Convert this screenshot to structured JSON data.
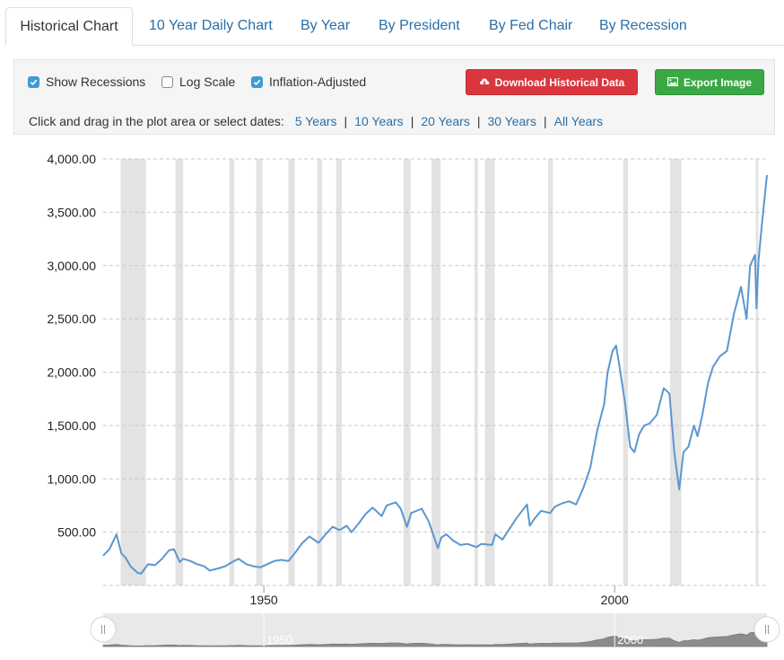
{
  "tabs": [
    {
      "label": "Historical Chart"
    },
    {
      "label": "10 Year Daily Chart"
    },
    {
      "label": "By Year"
    },
    {
      "label": "By President"
    },
    {
      "label": "By Fed Chair"
    },
    {
      "label": "By Recession"
    }
  ],
  "controls": {
    "show_recessions": {
      "label": "Show Recessions",
      "checked": true
    },
    "log_scale": {
      "label": "Log Scale",
      "checked": false
    },
    "inflation_adjusted": {
      "label": "Inflation-Adjusted",
      "checked": true
    },
    "download_label": "Download Historical Data",
    "export_label": "Export Image",
    "download_color": "#d9363e",
    "export_color": "#3aa845",
    "date_prompt": "Click and drag in the plot area or select dates:",
    "date_ranges": [
      "5 Years",
      "10 Years",
      "20 Years",
      "30 Years",
      "All Years"
    ],
    "separator": "|"
  },
  "navigator": {
    "labels": [
      "1950",
      "2000"
    ]
  },
  "chart_data": {
    "type": "line",
    "line_color": "#5b97cf",
    "recession_color": "#e3e3e3",
    "xlim": [
      1927.1,
      2021.7
    ],
    "ylim": [
      0,
      4000
    ],
    "yticks": [
      500,
      1000,
      1500,
      2000,
      2500,
      3000,
      3500,
      4000
    ],
    "ytick_labels": [
      "500.00",
      "1,000.00",
      "1,500.00",
      "2,000.00",
      "2,500.00",
      "3,000.00",
      "3,500.00",
      "4,000.00"
    ],
    "xticks": [
      1950,
      2000
    ],
    "xtick_labels": [
      "1950",
      "2000"
    ],
    "grid": true,
    "recessions": [
      [
        1929.6,
        1933.2
      ],
      [
        1937.4,
        1938.5
      ],
      [
        1945.1,
        1945.8
      ],
      [
        1948.9,
        1949.8
      ],
      [
        1953.5,
        1954.4
      ],
      [
        1957.6,
        1958.3
      ],
      [
        1960.3,
        1961.1
      ],
      [
        1969.9,
        1970.9
      ],
      [
        1973.9,
        1975.2
      ],
      [
        1980.0,
        1980.5
      ],
      [
        1981.5,
        1982.9
      ],
      [
        1990.5,
        1991.2
      ],
      [
        2001.2,
        2001.9
      ],
      [
        2007.9,
        2009.5
      ],
      [
        2020.1,
        2020.4
      ]
    ],
    "series": [
      {
        "x": [
          1927.1,
          1928,
          1929.0,
          1929.7,
          1930.3,
          1931.0,
          1932.0,
          1932.5,
          1933.5,
          1934.5,
          1935.5,
          1936.5,
          1937.2,
          1938.0,
          1938.5,
          1939.5,
          1940.5,
          1941.5,
          1942.3,
          1943.5,
          1944.5,
          1945.5,
          1946.4,
          1947.5,
          1948.5,
          1949.5,
          1950.5,
          1951.5,
          1952.5,
          1953.5,
          1954.5,
          1955.5,
          1956.5,
          1957.8,
          1958.8,
          1959.8,
          1960.8,
          1961.8,
          1962.5,
          1963.5,
          1964.5,
          1965.5,
          1966.0,
          1966.8,
          1967.5,
          1968.8,
          1969.5,
          1970.4,
          1971.0,
          1972.5,
          1973.5,
          1974.8,
          1975.3,
          1976.0,
          1977.0,
          1978.0,
          1979.0,
          1980.3,
          1981.0,
          1982.5,
          1983.0,
          1984.0,
          1985.0,
          1986.0,
          1987.5,
          1987.9,
          1988.5,
          1989.5,
          1990.8,
          1991.5,
          1992.5,
          1993.5,
          1994.5,
          1995.5,
          1996.5,
          1997.5,
          1998.5,
          1999.0,
          1999.7,
          2000.2,
          2000.7,
          2001.5,
          2002.2,
          2002.8,
          2003.5,
          2004.2,
          2005.0,
          2006.0,
          2007.0,
          2007.8,
          2008.5,
          2009.2,
          2009.8,
          2010.5,
          2011.3,
          2011.8,
          2012.5,
          2013.3,
          2014.0,
          2015.0,
          2016.0,
          2017.0,
          2018.0,
          2018.8,
          2019.3,
          2020.0,
          2020.2,
          2020.5,
          2021.0,
          2021.7
        ],
        "values": [
          280,
          340,
          480,
          300,
          260,
          180,
          120,
          110,
          200,
          190,
          250,
          330,
          340,
          220,
          250,
          230,
          200,
          180,
          140,
          160,
          180,
          220,
          250,
          200,
          180,
          170,
          200,
          230,
          240,
          230,
          310,
          400,
          460,
          400,
          480,
          550,
          520,
          560,
          500,
          580,
          670,
          730,
          700,
          650,
          750,
          780,
          720,
          550,
          680,
          720,
          600,
          350,
          450,
          480,
          420,
          380,
          390,
          360,
          390,
          380,
          480,
          430,
          530,
          630,
          760,
          560,
          620,
          700,
          680,
          740,
          770,
          790,
          760,
          910,
          1100,
          1450,
          1700,
          2000,
          2200,
          2250,
          2050,
          1700,
          1300,
          1250,
          1420,
          1500,
          1520,
          1600,
          1850,
          1800,
          1250,
          900,
          1250,
          1300,
          1500,
          1400,
          1600,
          1900,
          2050,
          2150,
          2200,
          2550,
          2800,
          2500,
          3000,
          3100,
          2600,
          3050,
          3400,
          3850
        ]
      }
    ]
  }
}
